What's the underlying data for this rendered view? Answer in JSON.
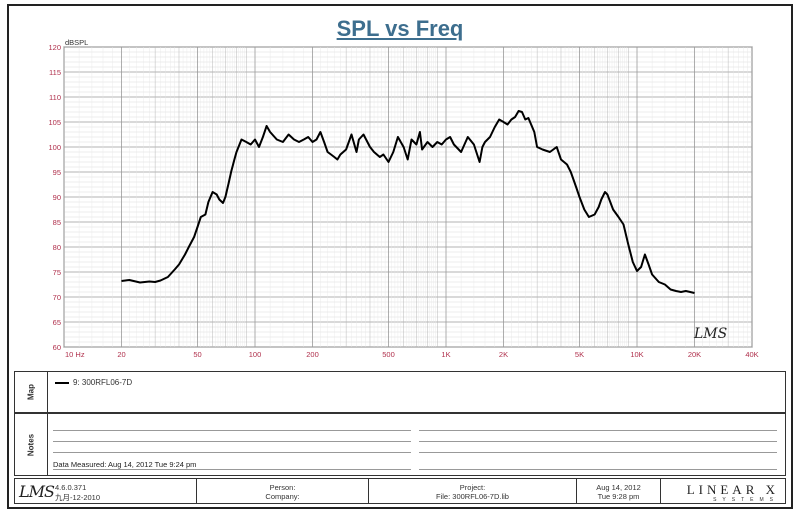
{
  "chart_data": {
    "type": "line",
    "title": "SPL vs Freq",
    "ylabel": "dBSPL",
    "xscale": "log",
    "xlim": [
      10,
      40000
    ],
    "ylim": [
      60,
      120
    ],
    "grid": true,
    "x_tick_labels": [
      "10 Hz",
      "20",
      "50",
      "100",
      "200",
      "500",
      "1K",
      "2K",
      "5K",
      "10K",
      "20K",
      "40K"
    ],
    "x_tick_values": [
      10,
      20,
      50,
      100,
      200,
      500,
      1000,
      2000,
      5000,
      10000,
      20000,
      40000
    ],
    "y_ticks": [
      60,
      65,
      70,
      75,
      80,
      85,
      90,
      95,
      100,
      105,
      110,
      115,
      120
    ],
    "series": [
      {
        "name": "9: 300RFL06-7D",
        "x": [
          20,
          22,
          25,
          28,
          30,
          32,
          35,
          38,
          40,
          43,
          45,
          48,
          50,
          52,
          55,
          57,
          60,
          63,
          65,
          68,
          70,
          73,
          75,
          78,
          80,
          85,
          90,
          95,
          100,
          105,
          110,
          115,
          120,
          130,
          140,
          150,
          160,
          170,
          180,
          190,
          200,
          210,
          220,
          230,
          240,
          250,
          260,
          270,
          280,
          300,
          320,
          340,
          350,
          370,
          400,
          420,
          450,
          470,
          500,
          530,
          560,
          600,
          630,
          660,
          700,
          730,
          750,
          800,
          850,
          900,
          950,
          1000,
          1050,
          1100,
          1200,
          1300,
          1400,
          1500,
          1550,
          1600,
          1700,
          1800,
          1900,
          2000,
          2100,
          2200,
          2300,
          2400,
          2500,
          2600,
          2700,
          2900,
          3000,
          3200,
          3500,
          3800,
          4000,
          4300,
          4500,
          4800,
          5000,
          5300,
          5600,
          6000,
          6300,
          6500,
          6800,
          7000,
          7500,
          8000,
          8500,
          9000,
          9500,
          10000,
          10500,
          11000,
          11500,
          12000,
          13000,
          14000,
          15000,
          16000,
          17000,
          18000,
          19000,
          20000
        ],
        "y": [
          73.2,
          73.4,
          72.9,
          73.1,
          73.0,
          73.3,
          74.0,
          75.5,
          76.5,
          78.5,
          80.0,
          82.0,
          84.0,
          86.0,
          86.5,
          89.0,
          91.0,
          90.5,
          89.5,
          88.8,
          90.0,
          93.0,
          95.0,
          97.5,
          99.0,
          101.5,
          101.0,
          100.5,
          101.5,
          100.0,
          102.0,
          104.2,
          103.0,
          101.5,
          101.0,
          102.5,
          101.5,
          101.0,
          101.5,
          102.0,
          101.0,
          101.5,
          103.0,
          101.0,
          99.0,
          98.5,
          98.0,
          97.5,
          98.5,
          99.5,
          102.5,
          99.0,
          101.5,
          102.5,
          100.0,
          99.0,
          98.0,
          98.5,
          97.0,
          99.0,
          102.0,
          100.0,
          97.5,
          101.5,
          100.5,
          103.0,
          99.5,
          101.0,
          100.0,
          101.0,
          100.5,
          101.5,
          102.0,
          100.5,
          99.0,
          102.0,
          100.5,
          97.0,
          100.0,
          101.0,
          102.0,
          104.0,
          105.5,
          105.0,
          104.5,
          105.5,
          106.0,
          107.2,
          107.0,
          105.5,
          105.8,
          103.0,
          100.0,
          99.5,
          99.0,
          100.0,
          97.5,
          96.5,
          95.0,
          92.0,
          90.0,
          87.5,
          86.0,
          86.5,
          88.0,
          89.5,
          91.0,
          90.5,
          87.5,
          86.0,
          84.5,
          80.5,
          77.0,
          75.2,
          76.0,
          78.5,
          76.5,
          74.5,
          73.0,
          72.5,
          71.5,
          71.2,
          71.0,
          71.2,
          71.0,
          70.8
        ]
      }
    ]
  },
  "watermark": "LMS",
  "map_label": "Map",
  "notes_label": "Notes",
  "legend_entry": "9: 300RFL06-7D",
  "date_measured": "Data Measured: Aug 14, 2012  Tue  9:24 pm",
  "footer": {
    "version": "4.6.0.371",
    "build": "九月-12-2010",
    "person_label": "Person:",
    "company_label": "Company:",
    "project_label": "Project:",
    "file_label": "File: 300RFL06-7D.lib",
    "date": "Aug 14, 2012",
    "time": "Tue  9:28 pm",
    "brand_top": "LINEAR X",
    "brand_bottom": "SYSTEMS"
  },
  "colors": {
    "title": "#3d6e8e",
    "curve": "#000000",
    "axis_labels": "#b0304c",
    "grid": "#b8b8b8"
  }
}
